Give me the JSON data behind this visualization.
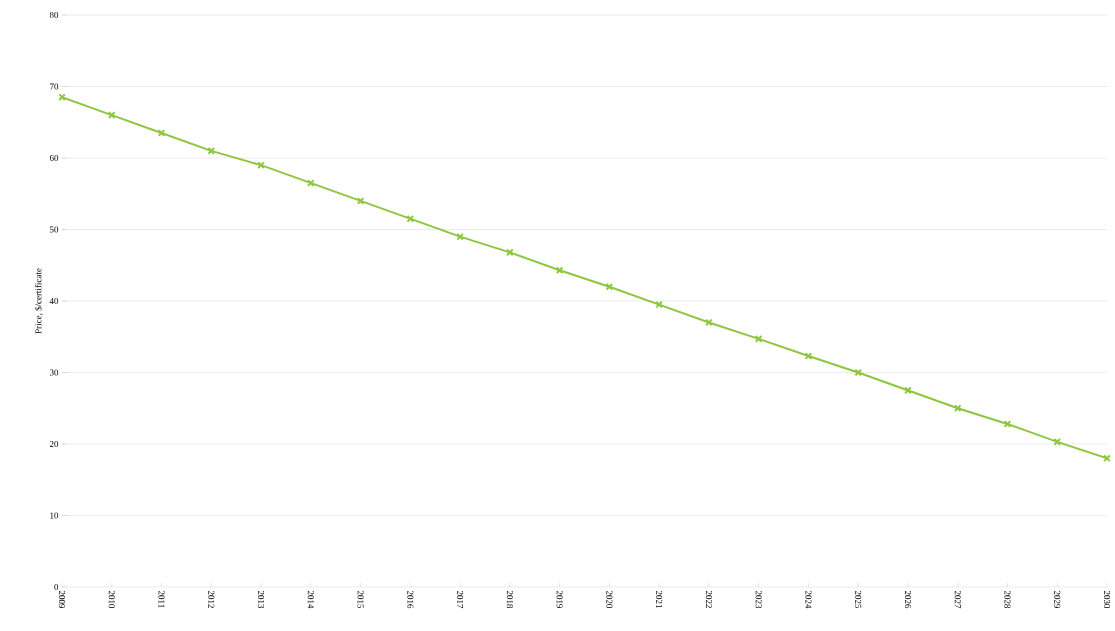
{
  "chart_data": {
    "type": "line",
    "ylabel": "Price, $/certificate",
    "categories": [
      "2009",
      "2010",
      "2011",
      "2012",
      "2013",
      "2014",
      "2015",
      "2016",
      "2017",
      "2018",
      "2019",
      "2020",
      "2021",
      "2022",
      "2023",
      "2024",
      "2025",
      "2026",
      "2027",
      "2028",
      "2029",
      "2030"
    ],
    "series": [
      {
        "color": "#8dc63f",
        "values": [
          68.5,
          66,
          63.5,
          61,
          59,
          56.5,
          54,
          51.5,
          49,
          46.8,
          44.3,
          42,
          39.5,
          37,
          34.7,
          32.3,
          30,
          27.5,
          25,
          22.8,
          20.3,
          18
        ]
      }
    ],
    "ylim": [
      0,
      80
    ],
    "yticks": [
      0,
      10,
      20,
      30,
      40,
      50,
      60,
      70,
      80
    ],
    "grid": "y",
    "marker": "cross",
    "line_style": "solid"
  }
}
